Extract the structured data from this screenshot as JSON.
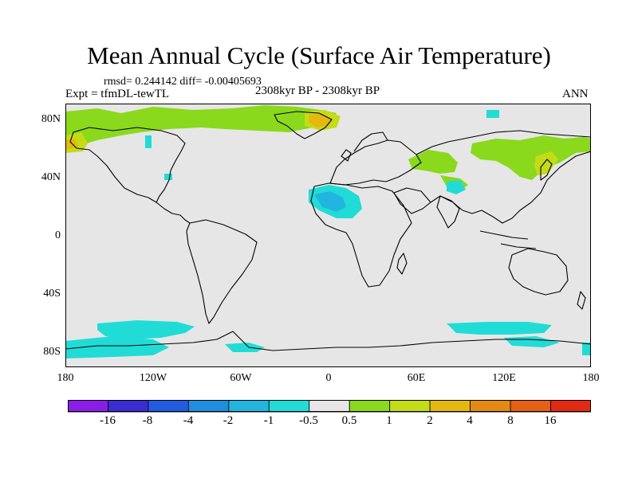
{
  "title": "Mean Annual Cycle (Surface Air Temperature)",
  "stats": "rmsd= 0.244142 diff= -0.00405693",
  "experiment": "Expt = tfmDL-tewTL",
  "period": "2308kyr BP - 2308kyr BP",
  "season": "ANN",
  "lat_labels": [
    "80N",
    "40N",
    "0",
    "40S",
    "80S"
  ],
  "lon_labels": [
    "180",
    "120W",
    "60W",
    "0",
    "60E",
    "120E",
    "180"
  ],
  "colorbar": {
    "labels": [
      "-16",
      "-8",
      "-4",
      "-2",
      "-1",
      "-0.5",
      "0.5",
      "1",
      "2",
      "4",
      "8",
      "16"
    ],
    "colors": [
      "#8b1ee6",
      "#3a2dd1",
      "#1f5ce0",
      "#1e8fe0",
      "#21b5e0",
      "#21dcd6",
      "#e6e6e6",
      "#8ad91c",
      "#c3dc16",
      "#e4b80f",
      "#e48a12",
      "#e46014",
      "#e02a12"
    ]
  },
  "colors": {
    "background": "#e6e6e6",
    "coast": "#000000",
    "warm_small": "#8ad91c",
    "warm_mid": "#c3dc16",
    "warm_high": "#e4b80f",
    "cool_small": "#21dcd6",
    "cool_mid": "#21b5e0"
  }
}
